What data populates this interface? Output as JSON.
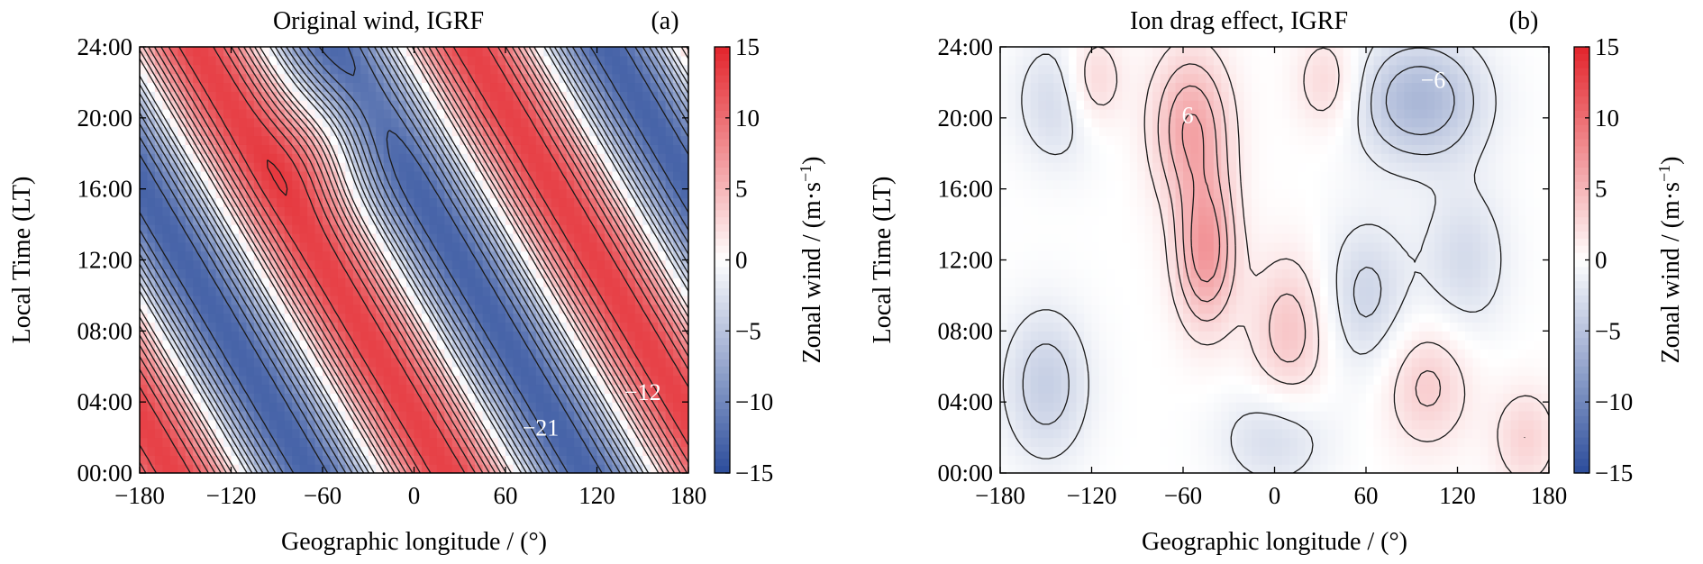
{
  "chart_data": [
    {
      "type": "heatmap",
      "title": "Original wind, IGRF",
      "panel_label": "(a)",
      "xlabel": "Geographic longitude / (°)",
      "ylabel": "Local Time (LT)",
      "colorbar_label": "Zonal wind / (m·s",
      "colorbar_unit_exp": "−1",
      "colorbar_close": ")",
      "x_ticks": [
        -180,
        -120,
        -60,
        0,
        60,
        120,
        180
      ],
      "x_tick_labels": [
        "−180",
        "−120",
        "−60",
        "0",
        "60",
        "120",
        "180"
      ],
      "y_ticks": [
        0,
        4,
        8,
        12,
        16,
        20,
        24
      ],
      "y_tick_labels": [
        "00:00",
        "04:00",
        "08:00",
        "12:00",
        "16:00",
        "20:00",
        "24:00"
      ],
      "xlim": [
        -180,
        180
      ],
      "ylim": [
        0,
        24
      ],
      "zlim": [
        -15,
        15
      ],
      "colorbar_ticks": [
        15,
        10,
        5,
        0,
        -5,
        -10,
        -15
      ],
      "colorbar_tick_labels": [
        "15",
        "10",
        "5",
        "0",
        "−5",
        "−10",
        "−15"
      ],
      "colormap": [
        "#2b4c9b",
        "#ffffff",
        "#e3242b"
      ],
      "contour_labels": [
        {
          "text": "−21",
          "x": 83,
          "y": 2.1
        },
        {
          "text": "−12",
          "x": 150,
          "y": 4.1
        }
      ],
      "field_components": [
        {
          "type": "wave",
          "amp": 13,
          "k": 2,
          "lt_shift": -105,
          "phase": 0.8
        },
        {
          "type": "blob",
          "amp": 4,
          "x": -55,
          "y": 19,
          "sx": 22,
          "sy": 2.2
        }
      ]
    },
    {
      "type": "heatmap",
      "title": "Ion drag effect, IGRF",
      "panel_label": "(b)",
      "xlabel": "Geographic longitude / (°)",
      "ylabel": "Local Time (LT)",
      "colorbar_label": "Zonal wind / (m·s",
      "colorbar_unit_exp": "−1",
      "colorbar_close": ")",
      "x_ticks": [
        -180,
        -120,
        -60,
        0,
        60,
        120,
        180
      ],
      "x_tick_labels": [
        "−180",
        "−120",
        "−60",
        "0",
        "60",
        "120",
        "180"
      ],
      "y_ticks": [
        0,
        4,
        8,
        12,
        16,
        20,
        24
      ],
      "y_tick_labels": [
        "00:00",
        "04:00",
        "08:00",
        "12:00",
        "16:00",
        "20:00",
        "24:00"
      ],
      "xlim": [
        -180,
        180
      ],
      "ylim": [
        0,
        24
      ],
      "zlim": [
        -15,
        15
      ],
      "colorbar_ticks": [
        15,
        10,
        5,
        0,
        -5,
        -10,
        -15
      ],
      "colorbar_tick_labels": [
        "15",
        "10",
        "5",
        "0",
        "−5",
        "−10",
        "−15"
      ],
      "colormap": [
        "#2b4c9b",
        "#ffffff",
        "#e3242b"
      ],
      "contour_labels": [
        {
          "text": "6",
          "x": -57,
          "y": 19.7
        },
        {
          "text": "−6",
          "x": 104,
          "y": 21.7
        }
      ],
      "field_components": [
        {
          "type": "blob",
          "amp": 6,
          "x": -55,
          "y": 19.5,
          "sx": 18,
          "sy": 3
        },
        {
          "type": "blob",
          "amp": 7,
          "x": -45,
          "y": 12.5,
          "sx": 14,
          "sy": 3
        },
        {
          "type": "blob",
          "amp": -6,
          "x": 95,
          "y": 21,
          "sx": 30,
          "sy": 2.5
        },
        {
          "type": "blob",
          "amp": 4,
          "x": 10,
          "y": 8,
          "sx": 18,
          "sy": 3
        },
        {
          "type": "blob",
          "amp": 3.5,
          "x": 100,
          "y": 5,
          "sx": 20,
          "sy": 2.5
        },
        {
          "type": "blob",
          "amp": -4,
          "x": -150,
          "y": 5,
          "sx": 20,
          "sy": 3
        },
        {
          "type": "blob",
          "amp": -3.5,
          "x": 60,
          "y": 10,
          "sx": 20,
          "sy": 3
        },
        {
          "type": "blob",
          "amp": -3.5,
          "x": -140,
          "y": 21,
          "sx": 20,
          "sy": 2.5
        },
        {
          "type": "blob",
          "amp": 4,
          "x": -120,
          "y": 22,
          "sx": 14,
          "sy": 2
        },
        {
          "type": "blob",
          "amp": 3,
          "x": 35,
          "y": 22,
          "sx": 15,
          "sy": 2
        },
        {
          "type": "blob",
          "amp": 3,
          "x": 165,
          "y": 2,
          "sx": 15,
          "sy": 2
        },
        {
          "type": "blob",
          "amp": -3,
          "x": 125,
          "y": 12,
          "sx": 20,
          "sy": 3
        },
        {
          "type": "blob",
          "amp": -3,
          "x": 0,
          "y": 2,
          "sx": 25,
          "sy": 2
        }
      ]
    }
  ]
}
